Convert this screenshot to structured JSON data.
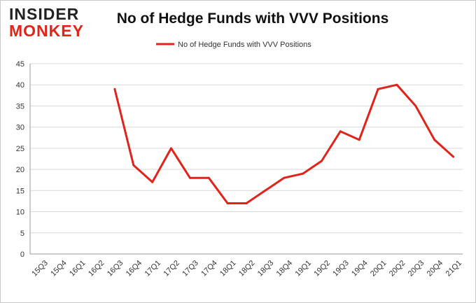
{
  "logo": {
    "line1": "INSIDER",
    "line2": "MONKEY"
  },
  "colors": {
    "series": "#e2231a",
    "grid": "#d9d9d9",
    "axis": "#999999"
  },
  "chart_data": {
    "type": "line",
    "title": "No of Hedge Funds with VVV Positions",
    "xlabel": "",
    "ylabel": "",
    "ylim": [
      0,
      45
    ],
    "yticks": [
      0,
      5,
      10,
      15,
      20,
      25,
      30,
      35,
      40,
      45
    ],
    "grid": true,
    "legend": "top-center",
    "categories": [
      "15Q3",
      "15Q4",
      "16Q1",
      "16Q2",
      "16Q3",
      "16Q4",
      "17Q1",
      "17Q2",
      "17Q3",
      "17Q4",
      "18Q1",
      "18Q2",
      "18Q3",
      "18Q4",
      "19Q1",
      "19Q2",
      "19Q3",
      "19Q4",
      "20Q1",
      "20Q2",
      "20Q3",
      "20Q4",
      "21Q1"
    ],
    "series": [
      {
        "name": "No of Hedge Funds with VVV  Positions",
        "values": [
          null,
          null,
          null,
          null,
          39,
          21,
          17,
          25,
          18,
          18,
          12,
          12,
          15,
          18,
          19,
          22,
          29,
          27,
          39,
          40,
          35,
          27,
          23
        ]
      }
    ]
  }
}
